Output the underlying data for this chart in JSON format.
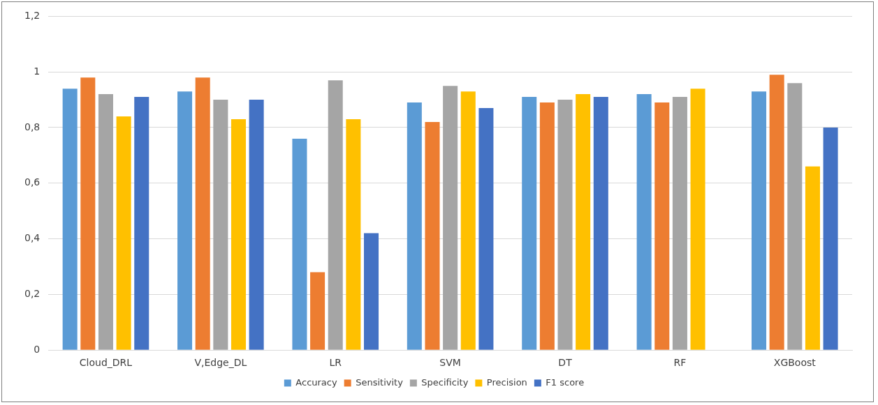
{
  "chart_data": {
    "type": "bar",
    "categories": [
      "Cloud_DRL",
      "V,Edge_DL",
      "LR",
      "SVM",
      "DT",
      "RF",
      "XGBoost"
    ],
    "series": [
      {
        "name": "Accuracy",
        "color": "#5b9bd5",
        "values": [
          0.94,
          0.93,
          0.76,
          0.89,
          0.91,
          0.92,
          0.93
        ]
      },
      {
        "name": "Sensitivity",
        "color": "#ed7d31",
        "values": [
          0.98,
          0.98,
          0.28,
          0.82,
          0.89,
          0.89,
          0.99
        ]
      },
      {
        "name": "Specificity",
        "color": "#a5a5a5",
        "values": [
          0.92,
          0.9,
          0.97,
          0.95,
          0.9,
          0.91,
          0.96
        ]
      },
      {
        "name": "Precision",
        "color": "#ffc000",
        "values": [
          0.84,
          0.83,
          0.83,
          0.93,
          0.92,
          0.94,
          0.66
        ]
      },
      {
        "name": "F1 score",
        "color": "#4472c4",
        "values": [
          0.91,
          0.9,
          0.42,
          0.87,
          0.91,
          null,
          0.8
        ]
      }
    ],
    "ylim": [
      0,
      1.2
    ],
    "yticks": [
      0,
      {
        "value": 0.2,
        "label": "0,2"
      },
      {
        "value": 0.4,
        "label": "0,4"
      },
      {
        "value": 0.6,
        "label": "0,6"
      },
      {
        "value": 0.8,
        "label": "0,8"
      },
      1,
      {
        "value": 1.2,
        "label": "1,2"
      }
    ],
    "grid": "y",
    "legend": "bottom"
  }
}
